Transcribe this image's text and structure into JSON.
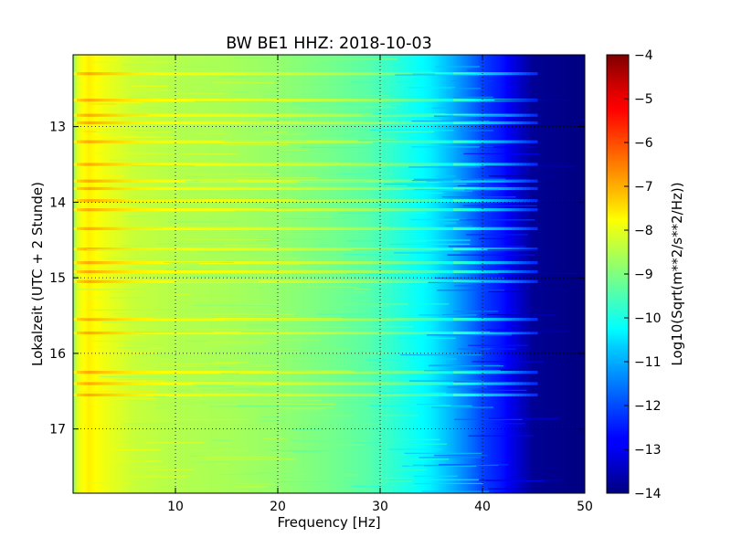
{
  "chart_data": {
    "type": "heatmap",
    "title": "BW BE1 HHZ: 2018-10-03",
    "xlabel": "Frequency [Hz]",
    "ylabel": "Lokalzeit (UTC + 2 Stunde)",
    "xlim": [
      0,
      50
    ],
    "ylim_hours": [
      12.05,
      17.85
    ],
    "y_inverted": true,
    "x_ticks": [
      10,
      20,
      30,
      40,
      50
    ],
    "x_tick_labels": [
      "10",
      "20",
      "30",
      "40",
      "50"
    ],
    "y_ticks": [
      13,
      14,
      15,
      16,
      17
    ],
    "y_tick_labels": [
      "13",
      "14",
      "15",
      "16",
      "17"
    ],
    "grid": true,
    "colorbar": {
      "label": "Log10(Sqrt(m**2/s**2/Hz))",
      "colormap": "jet",
      "vmin": -14,
      "vmax": -4,
      "ticks": [
        -4,
        -5,
        -6,
        -7,
        -8,
        -9,
        -10,
        -11,
        -12,
        -13,
        -14
      ],
      "tick_labels": [
        "−4",
        "−5",
        "−6",
        "−7",
        "−8",
        "−9",
        "−10",
        "−11",
        "−12",
        "−13",
        "−14"
      ]
    },
    "spectrum_profile": {
      "frequency_hz": [
        0,
        0.5,
        1.5,
        3,
        6,
        10,
        15,
        20,
        25,
        29,
        32,
        35,
        37,
        39,
        40,
        42,
        43.5,
        45,
        50
      ],
      "log_amplitude": [
        -9.0,
        -8.0,
        -7.6,
        -7.9,
        -8.3,
        -8.5,
        -8.6,
        -8.8,
        -9.1,
        -9.4,
        -9.9,
        -10.4,
        -11.0,
        -11.7,
        -12.1,
        -12.6,
        -13.2,
        -13.8,
        -14.0
      ]
    },
    "horizontal_bands_hours": [
      12.3,
      12.65,
      12.85,
      12.95,
      13.2,
      13.5,
      13.72,
      13.82,
      13.98,
      14.1,
      14.35,
      14.62,
      14.8,
      14.92,
      15.05,
      15.55,
      15.73,
      16.25,
      16.4,
      16.55
    ]
  }
}
